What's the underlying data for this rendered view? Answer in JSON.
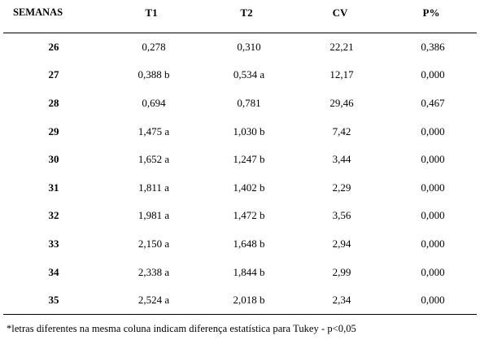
{
  "table": {
    "headers": [
      "SEMANAS",
      "T1",
      "T2",
      "CV",
      "P%"
    ],
    "rows": [
      [
        "26",
        "0,278",
        "0,310",
        "22,21",
        "0,386"
      ],
      [
        "27",
        "0,388 b",
        "0,534 a",
        "12,17",
        "0,000"
      ],
      [
        "28",
        "0,694",
        "0,781",
        "29,46",
        "0,467"
      ],
      [
        "29",
        "1,475 a",
        "1,030 b",
        "7,42",
        "0,000"
      ],
      [
        "30",
        "1,652 a",
        "1,247 b",
        "3,44",
        "0,000"
      ],
      [
        "31",
        "1,811 a",
        "1,402 b",
        "2,29",
        "0,000"
      ],
      [
        "32",
        "1,981 a",
        "1,472 b",
        "3,56",
        "0,000"
      ],
      [
        "33",
        "2,150 a",
        "1,648 b",
        "2,94",
        "0,000"
      ],
      [
        "34",
        "2,338 a",
        "1,844 b",
        "2,99",
        "0,000"
      ],
      [
        "35",
        "2,524 a",
        "2,018 b",
        "2,34",
        "0,000"
      ]
    ]
  },
  "footnote": "*letras diferentes na mesma coluna indicam diferença estatística para Tukey - p<0,05"
}
